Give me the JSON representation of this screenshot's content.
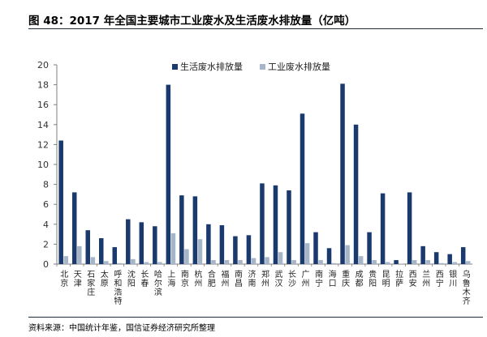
{
  "figure": {
    "title": "图 48：2017 年全国主要城市工业废水及生活废水排放量（亿吨）",
    "source": "资料来源：中国统计年鉴，国信证券经济研究所整理"
  },
  "colors": {
    "series_0": "#1a3a6e",
    "series_1": "#a6b5c7",
    "axis": "#7f7f7f"
  },
  "chart_data": {
    "type": "bar",
    "title": "",
    "xlabel": "",
    "ylabel": "",
    "ylim": [
      0,
      20
    ],
    "yticks": [
      0,
      2,
      4,
      6,
      8,
      10,
      12,
      14,
      16,
      18,
      20
    ],
    "grid": false,
    "legend": "top-center",
    "categories": [
      "北京",
      "天津",
      "石家庄",
      "太原",
      "呼和浩特",
      "沈阳",
      "长春",
      "哈尔滨",
      "上海",
      "南京",
      "杭州",
      "合肥",
      "福州",
      "南昌",
      "济南",
      "郑州",
      "武汉",
      "长沙",
      "广州",
      "南宁",
      "海口",
      "重庆",
      "成都",
      "贵阳",
      "昆明",
      "拉萨",
      "西安",
      "兰州",
      "西宁",
      "银川",
      "乌鲁木齐"
    ],
    "series": [
      {
        "name": "生活废水排放量",
        "values": [
          12.4,
          7.2,
          3.4,
          2.6,
          1.7,
          4.5,
          4.2,
          3.8,
          18.0,
          6.9,
          6.8,
          4.0,
          3.9,
          2.8,
          2.9,
          8.1,
          7.9,
          7.4,
          15.1,
          3.2,
          1.6,
          18.1,
          14.0,
          3.2,
          7.1,
          0.4,
          7.2,
          1.8,
          1.2,
          1.0,
          1.7
        ]
      },
      {
        "name": "工业废水排放量",
        "values": [
          0.8,
          1.8,
          0.7,
          0.3,
          0.1,
          0.5,
          0.2,
          0.2,
          3.1,
          1.5,
          2.5,
          0.4,
          0.4,
          0.4,
          0.6,
          0.7,
          1.2,
          0.4,
          2.1,
          0.4,
          0.1,
          1.9,
          0.8,
          0.4,
          0.2,
          0.05,
          0.4,
          0.4,
          0.1,
          0.2,
          0.3
        ]
      }
    ]
  }
}
